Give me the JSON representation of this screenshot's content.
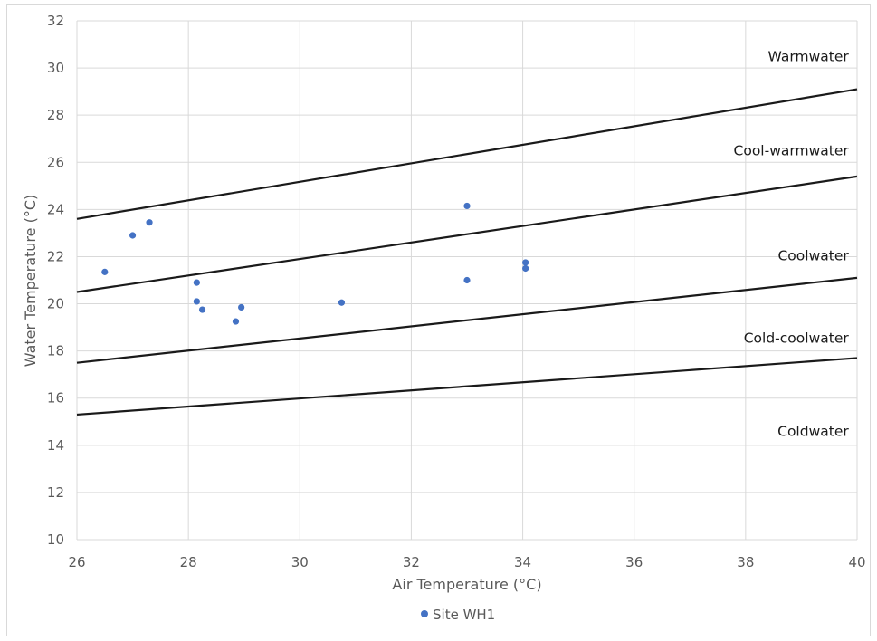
{
  "chart_data": {
    "type": "scatter",
    "xlabel": "Air Temperature (°C)",
    "ylabel": "Water Temperature (°C)",
    "xlim": [
      26,
      40
    ],
    "ylim": [
      10,
      32
    ],
    "x_ticks": [
      26,
      28,
      30,
      32,
      34,
      36,
      38,
      40
    ],
    "y_ticks": [
      10,
      12,
      14,
      16,
      18,
      20,
      22,
      24,
      26,
      28,
      30,
      32
    ],
    "grid": true,
    "legend_position": "bottom",
    "series": [
      {
        "name": "Site WH1",
        "color": "#4472c4",
        "points": [
          {
            "x": 26.5,
            "y": 21.35
          },
          {
            "x": 27.0,
            "y": 22.9
          },
          {
            "x": 27.3,
            "y": 23.45
          },
          {
            "x": 28.15,
            "y": 20.9
          },
          {
            "x": 28.15,
            "y": 20.1
          },
          {
            "x": 28.25,
            "y": 19.75
          },
          {
            "x": 28.85,
            "y": 19.25
          },
          {
            "x": 28.95,
            "y": 19.85
          },
          {
            "x": 30.75,
            "y": 20.05
          },
          {
            "x": 33.0,
            "y": 24.15
          },
          {
            "x": 33.0,
            "y": 21.0
          },
          {
            "x": 34.05,
            "y": 21.75
          },
          {
            "x": 34.05,
            "y": 21.5
          }
        ]
      }
    ],
    "boundaries": [
      {
        "x": [
          26,
          40
        ],
        "y": [
          23.6,
          29.1
        ],
        "color": "#1a1a1a"
      },
      {
        "x": [
          26,
          40
        ],
        "y": [
          20.5,
          25.4
        ],
        "color": "#1a1a1a"
      },
      {
        "x": [
          26,
          40
        ],
        "y": [
          17.5,
          21.1
        ],
        "color": "#1a1a1a"
      },
      {
        "x": [
          26,
          40
        ],
        "y": [
          15.3,
          17.7
        ],
        "color": "#1a1a1a"
      }
    ],
    "zone_labels": [
      {
        "text": "Warmwater",
        "x": 39.85,
        "y": 30.3
      },
      {
        "text": "Cool-warmwater",
        "x": 39.85,
        "y": 26.3
      },
      {
        "text": "Coolwater",
        "x": 39.85,
        "y": 21.85
      },
      {
        "text": "Cold-coolwater",
        "x": 39.85,
        "y": 18.35
      },
      {
        "text": "Coldwater",
        "x": 39.85,
        "y": 14.4
      }
    ]
  }
}
